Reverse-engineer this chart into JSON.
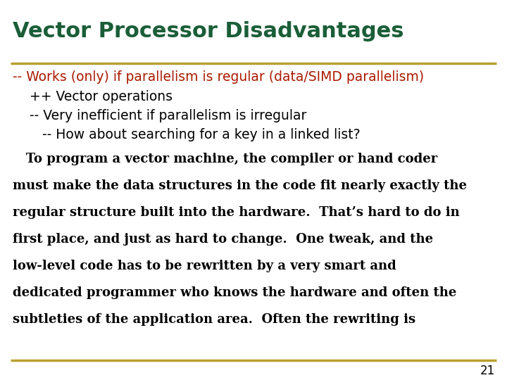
{
  "title": "Vector Processor Disadvantages",
  "title_color": "#1a5e38",
  "title_fontsize": 22,
  "separator_color": "#b8a030",
  "background_color": "#ffffff",
  "bullet1": "-- Works (only) if parallelism is regular (data/SIMD parallelism)",
  "bullet1_color": "#aa1a00",
  "bullet1_fontsize": 13.5,
  "bullet2": "    ++ Vector operations",
  "bullet2_color": "#000000",
  "bullet2_fontsize": 13.5,
  "bullet3": "    -- Very inefficient if parallelism is irregular",
  "bullet3_color": "#000000",
  "bullet3_fontsize": 13.5,
  "bullet4": "       -- How about searching for a key in a linked list?",
  "bullet4_color": "#000000",
  "bullet4_fontsize": 13.5,
  "body_lines": [
    "   To program a vector machine, the compiler or hand coder",
    "must make the data structures in the code fit nearly exactly the",
    "regular structure built into the hardware.  That’s hard to do in",
    "first place, and just as hard to change.  One tweak, and the",
    "low-level code has to be rewritten by a very smart and",
    "dedicated programmer who knows the hardware and often the",
    "subtleties of the application area.  Often the rewriting is"
  ],
  "body_color": "#000000",
  "body_fontsize": 13.0,
  "page_number": "21",
  "page_number_color": "#000000",
  "page_number_fontsize": 12
}
